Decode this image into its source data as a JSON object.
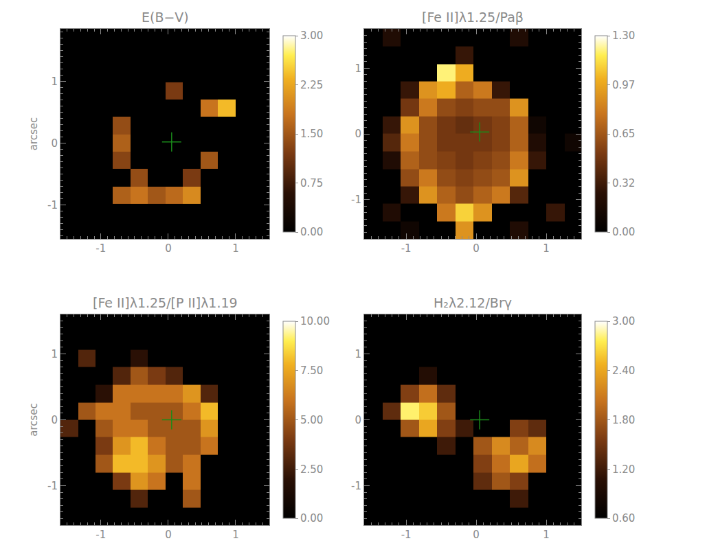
{
  "chart_data": [
    {
      "type": "heatmap",
      "title": "E(B−V)",
      "xlim": [
        -1.6,
        1.5
      ],
      "ylim": [
        -1.55,
        1.85
      ],
      "xticks": [
        -1,
        0,
        1
      ],
      "yticks": [
        -1,
        0,
        1
      ],
      "ylabel": "arcsec",
      "x": [
        -1.47,
        -1.21,
        -0.95,
        -0.69,
        -0.43,
        -0.17,
        0.09,
        0.35,
        0.61,
        0.87,
        1.13,
        1.39
      ],
      "y": [
        -1.41,
        -1.13,
        -0.84,
        -0.56,
        -0.28,
        0,
        0.28,
        0.57,
        0.85,
        1.13,
        1.42,
        1.7
      ],
      "cells": [
        [
          0,
          0,
          0,
          0,
          0,
          0,
          0,
          0,
          0,
          0,
          0,
          0
        ],
        [
          0,
          0,
          0,
          0,
          0,
          0,
          0,
          0,
          0,
          0,
          0,
          0
        ],
        [
          0,
          0,
          0,
          1.6,
          1.8,
          1.5,
          1.7,
          2.0,
          0,
          0,
          0,
          0
        ],
        [
          0,
          0,
          0,
          0,
          1.4,
          0,
          0,
          1.2,
          0,
          0,
          0,
          0
        ],
        [
          0,
          0,
          0,
          1.3,
          0,
          0,
          0,
          0,
          1.5,
          0,
          0,
          0
        ],
        [
          0,
          0,
          0,
          1.6,
          0,
          0,
          0,
          0,
          0,
          0,
          0,
          0
        ],
        [
          0,
          0,
          0,
          1.4,
          0,
          0,
          0,
          0,
          0,
          0,
          0,
          0
        ],
        [
          0,
          0,
          0,
          0,
          0,
          0,
          0,
          0,
          1.8,
          2.4,
          0,
          0
        ],
        [
          0,
          0,
          0,
          0,
          0,
          0,
          1.2,
          0,
          0,
          0,
          0,
          0
        ],
        [
          0,
          0,
          0,
          0,
          0,
          0,
          0,
          0,
          0,
          0,
          0,
          0
        ],
        [
          0,
          0,
          0,
          0,
          0,
          0,
          0,
          0,
          0,
          0,
          0,
          0
        ],
        [
          0,
          0,
          0,
          0,
          0,
          0,
          0,
          0,
          0,
          0,
          0,
          0
        ]
      ],
      "zlim": [
        0,
        3
      ],
      "zticks": [
        {
          "value": 0,
          "label": "0.00"
        },
        {
          "value": 0.75,
          "label": "0.75"
        },
        {
          "value": 1.5,
          "label": "1.50"
        },
        {
          "value": 2.25,
          "label": "2.25"
        },
        {
          "value": 3,
          "label": "3.00"
        }
      ],
      "cross": [
        0.05,
        0.02
      ]
    },
    {
      "type": "heatmap",
      "title": "[Fe II]λ1.25/Paβ",
      "xlim": [
        -1.6,
        1.5
      ],
      "ylim": [
        -1.6,
        1.6
      ],
      "xticks": [
        -1,
        0,
        1
      ],
      "yticks": [
        -1,
        0,
        1
      ],
      "x": [
        -1.47,
        -1.21,
        -0.95,
        -0.69,
        -0.43,
        -0.17,
        0.09,
        0.35,
        0.61,
        0.87,
        1.13,
        1.39
      ],
      "y": [
        -1.47,
        -1.2,
        -0.93,
        -0.67,
        -0.4,
        -0.13,
        0.13,
        0.4,
        0.67,
        0.93,
        1.2,
        1.47
      ],
      "cells": [
        [
          0,
          0,
          0.1,
          0,
          0,
          0.9,
          0,
          0,
          0.2,
          0,
          0,
          0
        ],
        [
          0,
          0.2,
          0,
          0,
          0.8,
          1.1,
          0.9,
          0,
          0,
          0,
          0.3,
          0
        ],
        [
          0,
          0,
          0.3,
          0.9,
          0.7,
          0.6,
          0.7,
          0.8,
          0.4,
          0,
          0,
          0
        ],
        [
          0,
          0,
          0.6,
          0.8,
          0.6,
          0.55,
          0.6,
          0.65,
          0.9,
          0,
          0,
          0
        ],
        [
          0,
          0.2,
          0.7,
          0.6,
          0.55,
          0.5,
          0.55,
          0.6,
          0.8,
          0.3,
          0,
          0
        ],
        [
          0,
          0.4,
          0.8,
          0.6,
          0.5,
          0.5,
          0.5,
          0.55,
          0.7,
          0.2,
          0,
          0.1
        ],
        [
          0,
          0.3,
          0.9,
          0.6,
          0.5,
          0.45,
          0.5,
          0.55,
          0.7,
          0.1,
          0,
          0
        ],
        [
          0,
          0,
          0.5,
          0.8,
          0.6,
          0.55,
          0.6,
          0.6,
          0.9,
          0,
          0,
          0
        ],
        [
          0,
          0,
          0.3,
          0.9,
          1.0,
          0.7,
          0.8,
          0.3,
          0,
          0,
          0,
          0
        ],
        [
          0,
          0,
          0,
          0,
          1.2,
          1.0,
          0,
          0,
          0,
          0,
          0,
          0
        ],
        [
          0,
          0,
          0,
          0,
          0,
          0.3,
          0,
          0,
          0,
          0,
          0,
          0
        ],
        [
          0,
          0.2,
          0,
          0,
          0,
          0,
          0,
          0,
          0.2,
          0,
          0,
          0
        ]
      ],
      "zlim": [
        0,
        1.3
      ],
      "zticks": [
        {
          "value": 0,
          "label": "0.00"
        },
        {
          "value": 0.325,
          "label": "0.32"
        },
        {
          "value": 0.65,
          "label": "0.65"
        },
        {
          "value": 0.975,
          "label": "0.97"
        },
        {
          "value": 1.3,
          "label": "1.30"
        }
      ],
      "cross": [
        0.05,
        0.03
      ]
    },
    {
      "type": "heatmap",
      "title": "[Fe II]λ1.25/[P II]λ1.19",
      "xlim": [
        -1.6,
        1.5
      ],
      "ylim": [
        -1.6,
        1.6
      ],
      "xticks": [
        -1,
        0,
        1
      ],
      "yticks": [
        -1,
        0,
        1
      ],
      "ylabel": "arcsec",
      "x": [
        -1.47,
        -1.21,
        -0.95,
        -0.69,
        -0.43,
        -0.17,
        0.09,
        0.35,
        0.61,
        0.87,
        1.13,
        1.39
      ],
      "y": [
        -1.47,
        -1.2,
        -0.93,
        -0.67,
        -0.4,
        -0.13,
        0.13,
        0.4,
        0.67,
        0.93,
        1.2,
        1.47
      ],
      "cells": [
        [
          0,
          0,
          0,
          0,
          0,
          0,
          0,
          0,
          0,
          0,
          0,
          0
        ],
        [
          0,
          0,
          0,
          0,
          3,
          0,
          0,
          5,
          0,
          0,
          0,
          0
        ],
        [
          0,
          0,
          0,
          4,
          7,
          6,
          0,
          6,
          0,
          0,
          0,
          0
        ],
        [
          0,
          0,
          5,
          8,
          8,
          7,
          5,
          6,
          0,
          0,
          0,
          0
        ],
        [
          0,
          0,
          4,
          7,
          8,
          6,
          5,
          5,
          6,
          0,
          0,
          0
        ],
        [
          3,
          0,
          5,
          6,
          6,
          5,
          5,
          5,
          7,
          0,
          0,
          0
        ],
        [
          0,
          5,
          6,
          6,
          5,
          5,
          5,
          6,
          8,
          0,
          0,
          0
        ],
        [
          0,
          0,
          2,
          6,
          6,
          6,
          6,
          7,
          3,
          0,
          0,
          0
        ],
        [
          0,
          0,
          0,
          3,
          5,
          4,
          3,
          0,
          0,
          0,
          0,
          0
        ],
        [
          0,
          3,
          0,
          0,
          2,
          0,
          0,
          0,
          0,
          0,
          0,
          0
        ],
        [
          0,
          0,
          0,
          0,
          0,
          0,
          0,
          0,
          0,
          0,
          0,
          0
        ],
        [
          0,
          0,
          0,
          0,
          0,
          0,
          0,
          0,
          0,
          0,
          0,
          0
        ]
      ],
      "zlim": [
        0,
        10
      ],
      "zticks": [
        {
          "value": 0,
          "label": "0.00"
        },
        {
          "value": 2.5,
          "label": "2.50"
        },
        {
          "value": 5,
          "label": "5.00"
        },
        {
          "value": 7.5,
          "label": "7.50"
        },
        {
          "value": 10,
          "label": "10.00"
        }
      ],
      "cross": [
        0.05,
        0.0
      ]
    },
    {
      "type": "heatmap",
      "title": "H₂λ2.12/Brγ",
      "xlim": [
        -1.6,
        1.5
      ],
      "ylim": [
        -1.6,
        1.6
      ],
      "xticks": [
        -1,
        0,
        1
      ],
      "yticks": [
        -1,
        0,
        1
      ],
      "x": [
        -1.47,
        -1.21,
        -0.95,
        -0.69,
        -0.43,
        -0.17,
        0.09,
        0.35,
        0.61,
        0.87,
        1.13,
        1.39
      ],
      "y": [
        -1.47,
        -1.2,
        -0.93,
        -0.67,
        -0.4,
        -0.13,
        0.13,
        0.4,
        0.67,
        0.93,
        1.2,
        1.47
      ],
      "cells": [
        [
          0.6,
          0.6,
          0.6,
          0.6,
          0.6,
          0.6,
          0.6,
          0.6,
          0.6,
          0.6,
          0.6,
          0.6
        ],
        [
          0.6,
          0.6,
          0.6,
          0.6,
          0.6,
          0.6,
          0.6,
          0.6,
          1.2,
          0.6,
          0.6,
          0.6
        ],
        [
          0.6,
          0.6,
          0.6,
          0.6,
          0.6,
          0.6,
          1.4,
          1.8,
          1.6,
          0.6,
          0.6,
          0.6
        ],
        [
          0.6,
          0.6,
          0.6,
          0.6,
          0.6,
          0.6,
          1.6,
          2.0,
          2.4,
          2.0,
          0.6,
          0.6
        ],
        [
          0.6,
          0.6,
          0.6,
          0.6,
          1.2,
          0.6,
          1.8,
          2.2,
          1.9,
          2.2,
          0.6,
          0.6
        ],
        [
          0.6,
          0.6,
          1.8,
          2.4,
          1.6,
          1.2,
          0.6,
          0.6,
          1.6,
          1.4,
          0.6,
          0.6
        ],
        [
          0.6,
          1.4,
          2.8,
          2.6,
          1.8,
          0.6,
          0.6,
          0.6,
          0.6,
          0.6,
          0.6,
          0.6
        ],
        [
          0.6,
          0.6,
          1.6,
          2.0,
          1.4,
          0.6,
          0.6,
          0.6,
          0.6,
          0.6,
          0.6,
          0.6
        ],
        [
          0.6,
          0.6,
          0.6,
          1.0,
          0.6,
          0.6,
          0.6,
          0.6,
          0.6,
          0.6,
          0.6,
          0.6
        ],
        [
          0.6,
          0.6,
          0.6,
          0.6,
          0.6,
          0.6,
          0.6,
          0.6,
          0.6,
          0.6,
          0.6,
          0.6
        ],
        [
          0.6,
          0.6,
          0.6,
          0.6,
          0.6,
          0.6,
          0.6,
          0.6,
          0.6,
          0.6,
          0.6,
          0.6
        ],
        [
          0.6,
          0.6,
          0.6,
          0.6,
          0.6,
          0.6,
          0.6,
          0.6,
          0.6,
          0.6,
          0.6,
          0.6
        ]
      ],
      "zlim": [
        0.6,
        3
      ],
      "zticks": [
        {
          "value": 0.6,
          "label": "0.60"
        },
        {
          "value": 1.2,
          "label": "1.20"
        },
        {
          "value": 1.8,
          "label": "1.80"
        },
        {
          "value": 2.4,
          "label": "2.40"
        },
        {
          "value": 3,
          "label": "3.00"
        }
      ],
      "cross": [
        0.05,
        0.0
      ]
    }
  ]
}
